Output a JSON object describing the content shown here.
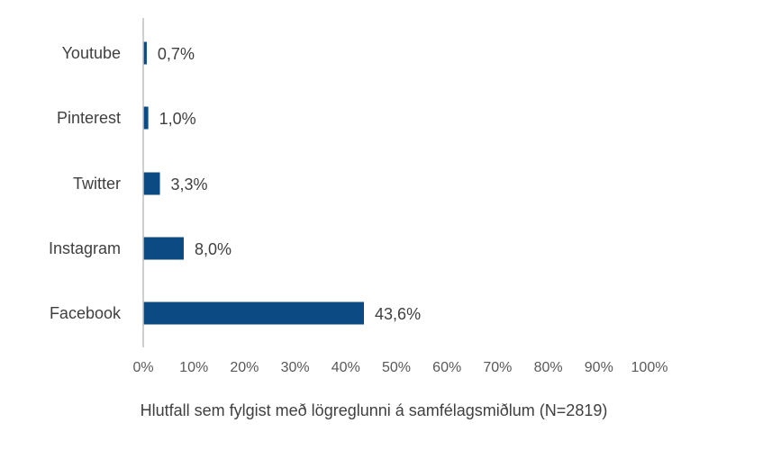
{
  "chart_data": {
    "type": "bar",
    "orientation": "horizontal",
    "categories": [
      "Facebook",
      "Instagram",
      "Twitter",
      "Pinterest",
      "Youtube"
    ],
    "values": [
      43.6,
      8.0,
      3.3,
      1.0,
      0.7
    ],
    "data_labels": [
      "43,6%",
      "8,0%",
      "3,3%",
      "1,0%",
      "0,7%"
    ],
    "xlabel": "Hlutfall sem fylgist með lögreglunni á samfélagsmiðlum (N=2819)",
    "xlim": [
      0,
      100
    ],
    "x_ticks": [
      0,
      10,
      20,
      30,
      40,
      50,
      60,
      70,
      80,
      90,
      100
    ],
    "x_tick_labels": [
      "0%",
      "10%",
      "20%",
      "30%",
      "40%",
      "50%",
      "60%",
      "70%",
      "80%",
      "90%",
      "100%"
    ],
    "grid": false,
    "legend": "none",
    "bar_color": "#0b4a82",
    "axis_color": "#bfbfbf"
  }
}
